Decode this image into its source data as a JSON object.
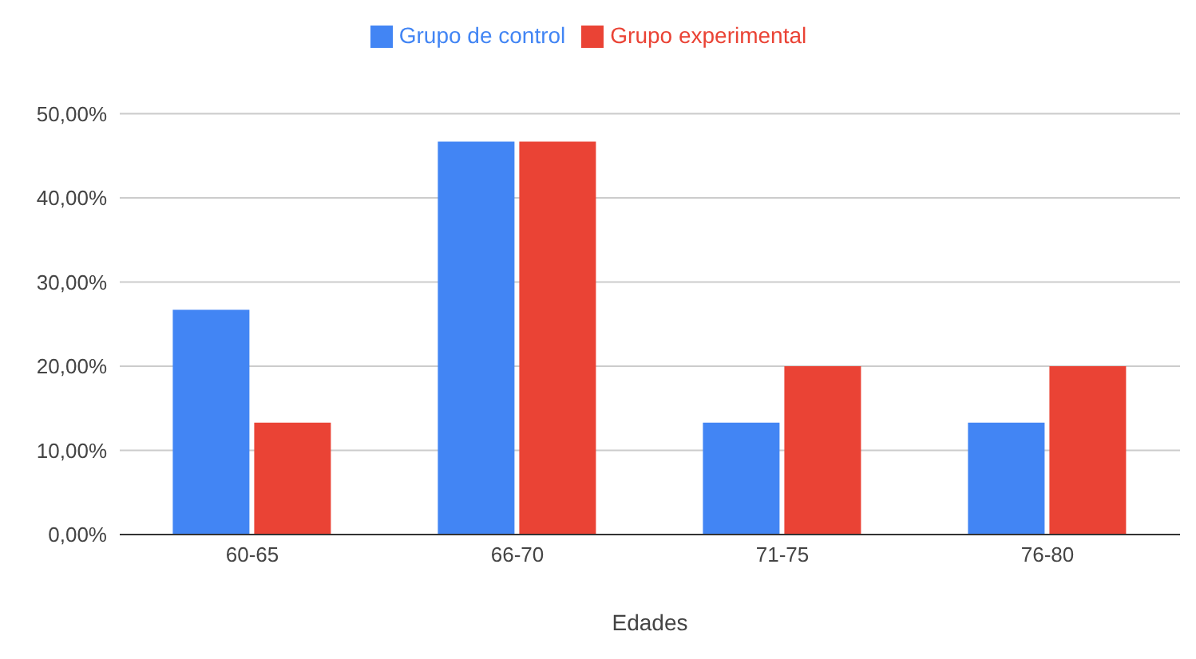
{
  "chart_data": {
    "type": "bar",
    "xlabel": "Edades",
    "categories": [
      "60-65",
      "66-70",
      "71-75",
      "76-80"
    ],
    "series": [
      {
        "name": "Grupo de control",
        "color": "#4285f4",
        "values": [
          26.7,
          46.7,
          13.3,
          13.3
        ]
      },
      {
        "name": "Grupo experimental",
        "color": "#ea4335",
        "values": [
          13.3,
          46.7,
          20,
          20
        ]
      }
    ],
    "ylim": [
      0,
      50
    ],
    "yticks": [
      {
        "value": 0,
        "label": "0,00%"
      },
      {
        "value": 10,
        "label": "10,00%"
      },
      {
        "value": 20,
        "label": "20,00%"
      },
      {
        "value": 30,
        "label": "30,00%"
      },
      {
        "value": 40,
        "label": "40,00%"
      },
      {
        "value": 50,
        "label": "50,00%"
      }
    ],
    "grid": "y",
    "legend": "top"
  }
}
